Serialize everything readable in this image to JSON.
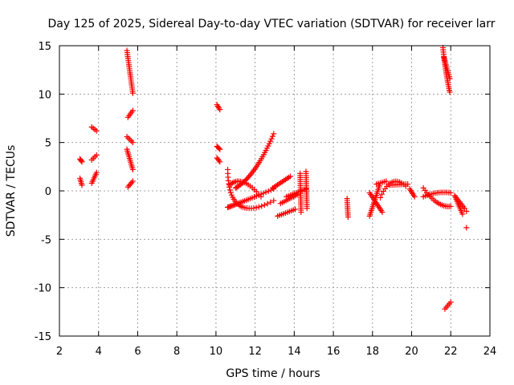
{
  "chart_data": {
    "type": "scatter",
    "title": "Day 125 of 2025, Sidereal Day-to-day VTEC variation (SDTVAR) for receiver larr",
    "xlabel": "GPS time / hours",
    "ylabel": "SDTVAR / TECUs",
    "xlim": [
      2,
      24
    ],
    "ylim": [
      -15,
      15
    ],
    "xticks": [
      2,
      4,
      6,
      8,
      10,
      12,
      14,
      16,
      18,
      20,
      22,
      24
    ],
    "yticks": [
      -15,
      -10,
      -5,
      0,
      5,
      10,
      15
    ],
    "xtick_labels": [
      "2",
      "4",
      "6",
      "8",
      "10",
      "12",
      "14",
      "16",
      "18",
      "20",
      "22",
      "24"
    ],
    "ytick_labels": [
      "-15",
      "-10",
      "-5",
      "0",
      "5",
      "10",
      "15"
    ],
    "grid": true,
    "marker": "+",
    "marker_color": "#ff0000",
    "segments": [
      {
        "x": [
          3.05,
          3.15
        ],
        "y": [
          3.3,
          3.0
        ]
      },
      {
        "x": [
          3.05,
          3.15
        ],
        "y": [
          1.3,
          0.6
        ]
      },
      {
        "x": [
          3.65,
          3.9
        ],
        "y": [
          6.6,
          6.2
        ]
      },
      {
        "x": [
          3.65,
          3.9
        ],
        "y": [
          3.2,
          3.7
        ]
      },
      {
        "x": [
          3.65,
          3.9
        ],
        "y": [
          0.8,
          1.9
        ]
      },
      {
        "x": [
          5.45,
          5.75
        ],
        "y": [
          14.5,
          10.1
        ]
      },
      {
        "x": [
          5.5,
          5.75
        ],
        "y": [
          7.6,
          8.3
        ]
      },
      {
        "x": [
          5.45,
          5.75
        ],
        "y": [
          5.6,
          5.0
        ]
      },
      {
        "x": [
          5.45,
          5.75
        ],
        "y": [
          4.3,
          2.2
        ]
      },
      {
        "x": [
          5.5,
          5.75
        ],
        "y": [
          0.4,
          1.0
        ]
      },
      {
        "x": [
          10.05,
          10.2
        ],
        "y": [
          8.9,
          8.4
        ]
      },
      {
        "x": [
          10.05,
          10.2
        ],
        "y": [
          4.6,
          4.3
        ]
      },
      {
        "x": [
          10.05,
          10.2
        ],
        "y": [
          3.4,
          3.0
        ]
      },
      {
        "x": [
          10.6,
          12.95
        ],
        "y": [
          2.2,
          -1.0
        ],
        "mid": [
          11.2,
          -1.5
        ]
      },
      {
        "x": [
          10.7,
          12.3
        ],
        "y": [
          0.6,
          -0.6
        ],
        "mid": [
          11.4,
          0.9
        ]
      },
      {
        "x": [
          10.6,
          12.95
        ],
        "y": [
          -1.7,
          0.2
        ],
        "mid": [
          11.5,
          -1.0
        ]
      },
      {
        "x": [
          11.0,
          12.95
        ],
        "y": [
          0.3,
          5.9
        ],
        "mid": [
          12.0,
          2.3
        ]
      },
      {
        "x": [
          12.9,
          13.8
        ],
        "y": [
          0.3,
          1.5
        ]
      },
      {
        "x": [
          13.15,
          14.05
        ],
        "y": [
          -2.6,
          -1.9
        ]
      },
      {
        "x": [
          13.3,
          14.15
        ],
        "y": [
          -1.3,
          -0.4
        ]
      },
      {
        "x": [
          13.6,
          14.6
        ],
        "y": [
          -0.6,
          0.2
        ]
      },
      {
        "x": [
          14.3,
          14.35
        ],
        "y": [
          1.8,
          -2.2
        ]
      },
      {
        "x": [
          14.6,
          14.65
        ],
        "y": [
          2.0,
          -1.8
        ]
      },
      {
        "x": [
          16.7,
          16.75
        ],
        "y": [
          -0.8,
          -2.7
        ]
      },
      {
        "x": [
          17.85,
          18.35
        ],
        "y": [
          -2.6,
          0.5
        ]
      },
      {
        "x": [
          17.85,
          18.5
        ],
        "y": [
          -0.2,
          -2.2
        ]
      },
      {
        "x": [
          18.2,
          18.7
        ],
        "y": [
          0.7,
          1.0
        ]
      },
      {
        "x": [
          18.4,
          19.7
        ],
        "y": [
          -0.7,
          0.5
        ],
        "mid": [
          19.0,
          0.9
        ]
      },
      {
        "x": [
          18.9,
          19.8
        ],
        "y": [
          0.6,
          0.7
        ]
      },
      {
        "x": [
          19.9,
          20.15
        ],
        "y": [
          0.2,
          -0.6
        ]
      },
      {
        "x": [
          20.6,
          22.0
        ],
        "y": [
          0.3,
          -1.6
        ],
        "mid": [
          21.3,
          -1.2
        ]
      },
      {
        "x": [
          20.6,
          22.0
        ],
        "y": [
          -0.6,
          -0.2
        ],
        "mid": [
          21.3,
          -0.2
        ]
      },
      {
        "x": [
          21.6,
          21.95
        ],
        "y": [
          14.8,
          10.2
        ],
        "mid": [
          21.75,
          12.4
        ]
      },
      {
        "x": [
          21.65,
          21.95
        ],
        "y": [
          13.8,
          11.6
        ]
      },
      {
        "x": [
          21.7,
          22.0
        ],
        "y": [
          -12.2,
          -11.5
        ]
      },
      {
        "x": [
          22.2,
          22.7
        ],
        "y": [
          -0.5,
          -1.8
        ]
      },
      {
        "x": [
          22.2,
          22.6
        ],
        "y": [
          -0.5,
          -2.4
        ]
      }
    ],
    "points": [
      {
        "x": 22.8,
        "y": -3.8
      },
      {
        "x": 22.8,
        "y": -2.1
      }
    ]
  }
}
